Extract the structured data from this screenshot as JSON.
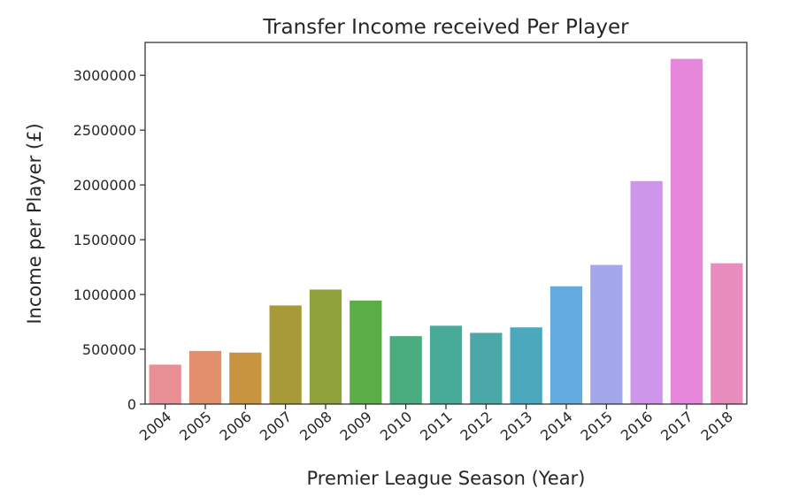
{
  "chart_data": {
    "type": "bar",
    "title": "Transfer Income received Per Player",
    "xlabel": "Premier League Season (Year)",
    "ylabel": "Income per Player (£)",
    "categories": [
      "2004",
      "2005",
      "2006",
      "2007",
      "2008",
      "2009",
      "2010",
      "2011",
      "2012",
      "2013",
      "2014",
      "2015",
      "2016",
      "2017",
      "2018"
    ],
    "values": [
      360000,
      485000,
      470000,
      900000,
      1045000,
      945000,
      620000,
      715000,
      650000,
      700000,
      1075000,
      1270000,
      2035000,
      3150000,
      1285000
    ],
    "ylim": [
      0,
      3300000
    ],
    "yticks": [
      0,
      500000,
      1000000,
      1500000,
      2000000,
      2500000,
      3000000
    ],
    "ytick_labels": [
      "0",
      "500000",
      "1000000",
      "1500000",
      "2000000",
      "2500000",
      "3000000"
    ],
    "colors": [
      "#e88f96",
      "#e48f6c",
      "#c8943f",
      "#a89a38",
      "#8fa23c",
      "#5aae45",
      "#49ac7e",
      "#48aa98",
      "#4aa9a8",
      "#4ca8bc",
      "#62abe0",
      "#a4a7ea",
      "#ce96ea",
      "#e787dc",
      "#e88dbd"
    ],
    "grid": false,
    "legend": "none"
  }
}
